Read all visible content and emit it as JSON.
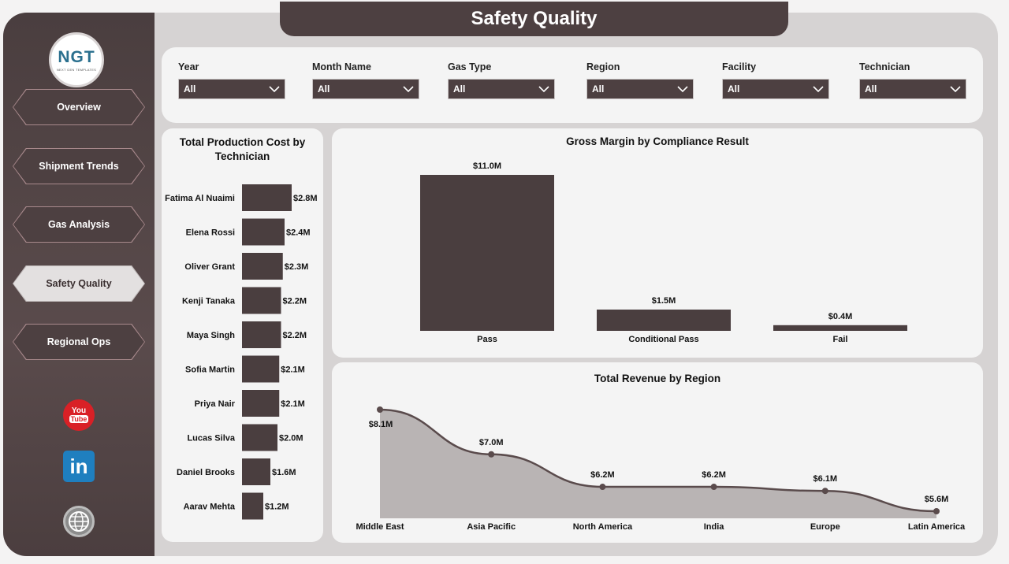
{
  "app": {
    "title": "Safety Quality",
    "logo_text": "NGT",
    "logo_sub": "NEXT GEN TEMPLATES"
  },
  "nav": [
    {
      "label": "Overview",
      "active": false
    },
    {
      "label": "Shipment Trends",
      "active": false
    },
    {
      "label": "Gas Analysis",
      "active": false
    },
    {
      "label": "Safety Quality",
      "active": true
    },
    {
      "label": "Regional Ops",
      "active": false
    }
  ],
  "social": {
    "youtube_top": "You",
    "youtube_bottom": "Tube",
    "linkedin": "in"
  },
  "filters": [
    {
      "label": "Year",
      "value": "All"
    },
    {
      "label": "Month Name",
      "value": "All"
    },
    {
      "label": "Gas Type",
      "value": "All"
    },
    {
      "label": "Region",
      "value": "All"
    },
    {
      "label": "Facility",
      "value": "All"
    },
    {
      "label": "Technician",
      "value": "All"
    }
  ],
  "colors": {
    "bar": "#4a3e3f",
    "area": "#b9b4b4",
    "line": "#5a4b4c",
    "accent": "#4d4041"
  },
  "chart_data": [
    {
      "type": "bar",
      "orientation": "horizontal",
      "title": "Total Production Cost by Technician",
      "categories": [
        "Fatima Al Nuaimi",
        "Elena Rossi",
        "Oliver Grant",
        "Kenji Tanaka",
        "Maya Singh",
        "Sofia Martin",
        "Priya Nair",
        "Lucas Silva",
        "Daniel Brooks",
        "Aarav Mehta"
      ],
      "values": [
        2.8,
        2.4,
        2.3,
        2.2,
        2.2,
        2.1,
        2.1,
        2.0,
        1.6,
        1.2
      ],
      "labels": [
        "$2.8M",
        "$2.4M",
        "$2.3M",
        "$2.2M",
        "$2.2M",
        "$2.1M",
        "$2.1M",
        "$2.0M",
        "$1.6M",
        "$1.2M"
      ],
      "xlim": [
        0,
        2.8
      ]
    },
    {
      "type": "bar",
      "title": "Gross Margin by Compliance Result",
      "categories": [
        "Pass",
        "Conditional Pass",
        "Fail"
      ],
      "values": [
        11.0,
        1.5,
        0.4
      ],
      "labels": [
        "$11.0M",
        "$1.5M",
        "$0.4M"
      ],
      "ylim": [
        0,
        11.0
      ]
    },
    {
      "type": "area",
      "title": "Total Revenue by Region",
      "categories": [
        "Middle East",
        "Asia Pacific",
        "North America",
        "India",
        "Europe",
        "Latin America"
      ],
      "values": [
        8.1,
        7.0,
        6.2,
        6.2,
        6.1,
        5.6
      ],
      "labels": [
        "$8.1M",
        "$7.0M",
        "$6.2M",
        "$6.2M",
        "$6.1M",
        "$5.6M"
      ]
    }
  ]
}
